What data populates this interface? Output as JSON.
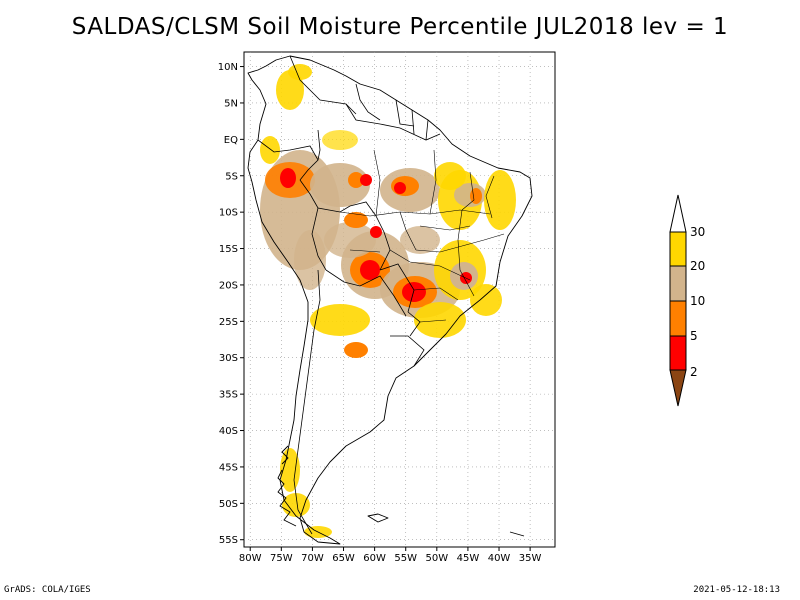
{
  "title": "SALDAS/CLSM Soil Moisture Percentile JUL2018 lev = 1",
  "footer": {
    "left": "GrADS: COLA/IGES",
    "right": "2021-05-12-18:13"
  },
  "map": {
    "lon_range": [
      -81,
      -31
    ],
    "lat_range": [
      -56,
      12
    ],
    "lat_ticks": [
      {
        "value": 10,
        "label": "10N"
      },
      {
        "value": 5,
        "label": "5N"
      },
      {
        "value": 0,
        "label": "EQ"
      },
      {
        "value": -5,
        "label": "5S"
      },
      {
        "value": -10,
        "label": "10S"
      },
      {
        "value": -15,
        "label": "15S"
      },
      {
        "value": -20,
        "label": "20S"
      },
      {
        "value": -25,
        "label": "25S"
      },
      {
        "value": -30,
        "label": "30S"
      },
      {
        "value": -35,
        "label": "35S"
      },
      {
        "value": -40,
        "label": "40S"
      },
      {
        "value": -45,
        "label": "45S"
      },
      {
        "value": -50,
        "label": "50S"
      },
      {
        "value": -55,
        "label": "55S"
      }
    ],
    "lon_ticks": [
      {
        "value": -80,
        "label": "80W"
      },
      {
        "value": -75,
        "label": "75W"
      },
      {
        "value": -70,
        "label": "70W"
      },
      {
        "value": -65,
        "label": "65W"
      },
      {
        "value": -60,
        "label": "60W"
      },
      {
        "value": -55,
        "label": "55W"
      },
      {
        "value": -50,
        "label": "50W"
      },
      {
        "value": -45,
        "label": "45W"
      },
      {
        "value": -40,
        "label": "40W"
      },
      {
        "value": -35,
        "label": "35W"
      }
    ],
    "grid": true
  },
  "legend": {
    "labels": [
      "2",
      "5",
      "10",
      "20",
      "30"
    ],
    "colors": [
      "#8b4513",
      "#ff0000",
      "#ff8000",
      "#d2b48c",
      "#ffd700",
      "#ffffff"
    ]
  },
  "colors": {
    "below_2": "#8b4513",
    "p2_5": "#ff0000",
    "p5_10": "#ff8000",
    "p10_20": "#d2b48c",
    "p20_30": "#ffd700"
  }
}
